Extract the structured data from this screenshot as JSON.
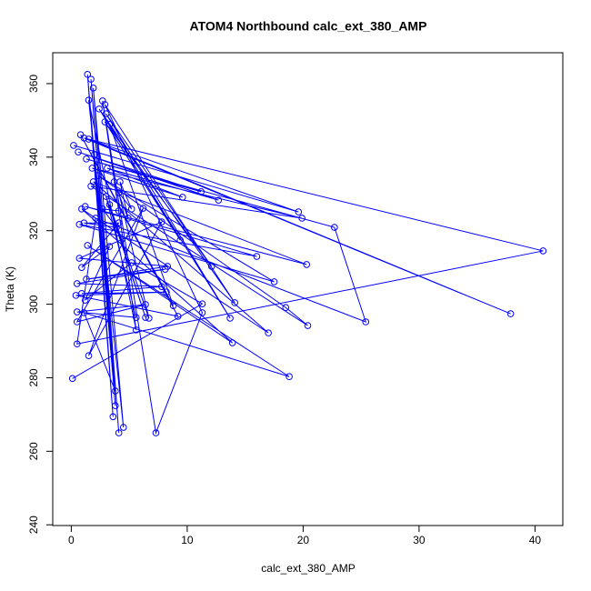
{
  "chart_data": {
    "type": "line",
    "title": "ATOM4 Northbound calc_ext_380_AMP",
    "x_label": "calc_ext_380_AMP",
    "y_label": "Theta (K)",
    "xlim": [
      -1.6,
      42.4
    ],
    "ylim": [
      239.8,
      368.4
    ],
    "xticks": [
      0,
      10,
      20,
      30,
      40
    ],
    "yticks": [
      240,
      260,
      280,
      300,
      320,
      340,
      360
    ],
    "series": [
      {
        "name": "Theta",
        "color": "#0000ff",
        "x": [
          0.2,
          19.6,
          1.5,
          37.9,
          1.1,
          40.7,
          0.5,
          2.1,
          25.4,
          22.7,
          1.3,
          11.2,
          0.6,
          12.7,
          3.1,
          9.6,
          1.8,
          19.9,
          1.7,
          20.4,
          18.5,
          2.3,
          17.5,
          0.7,
          16.0,
          1.2,
          20.3,
          1.9,
          17.0,
          0.9,
          13.9,
          1.4,
          18.8,
          1.1,
          3.8,
          2.0,
          3.6,
          1.4,
          3.8,
          1.7,
          4.1,
          1.9,
          4.5,
          1.5,
          5.6,
          2.7,
          7.3,
          11.3,
          2.9,
          14.1,
          2.4,
          13.7,
          3.0,
          12.1,
          2.9,
          9.4,
          3.3,
          8.8,
          0.8,
          9.2,
          0.4,
          8.2,
          0.9,
          7.8,
          0.5,
          8.1,
          1.3,
          8.3,
          0.7,
          7.8,
          1.5,
          6.2,
          0.5,
          6.4,
          0.5,
          5.6,
          3.0,
          6.4,
          3.3,
          6.7,
          4.1,
          5.2,
          4.2,
          4.9,
          3.7,
          4.1,
          2.7,
          3.9,
          1.1,
          4.1,
          0.9,
          3.3,
          1.2,
          5.2,
          11.3,
          0.1
        ],
        "values": [
          343.2,
          325.1,
          344.9,
          297.4,
          345.2,
          314.5,
          289.2,
          323.4,
          295.2,
          320.9,
          339.5,
          330.6,
          341.4,
          328.3,
          337.0,
          329.1,
          337.0,
          323.4,
          332.1,
          294.2,
          299.1,
          335.0,
          306.1,
          321.7,
          313.0,
          326.6,
          310.8,
          333.3,
          292.2,
          325.9,
          289.5,
          316.0,
          280.3,
          297.7,
          276.4,
          340.7,
          269.4,
          362.5,
          272.4,
          361.2,
          265.0,
          358.8,
          266.5,
          355.5,
          293.0,
          355.3,
          265.0,
          297.7,
          354.3,
          300.4,
          353.1,
          296.2,
          351.8,
          310.3,
          349.6,
          317.4,
          348.9,
          299.6,
          346.1,
          296.7,
          302.4,
          303.3,
          302.9,
          304.8,
          305.6,
          309.5,
          306.8,
          310.3,
          312.5,
          322.4,
          286.0,
          326.1,
          295.2,
          299.9,
          297.9,
          296.4,
          329.3,
          296.4,
          327.1,
          296.2,
          330.3,
          325.9,
          333.3,
          323.4,
          333.3,
          325.4,
          325.9,
          320.9,
          322.1,
          322.1,
          310.0,
          315.7,
          301.1,
          311.3,
          300.1,
          279.8
        ]
      }
    ]
  }
}
